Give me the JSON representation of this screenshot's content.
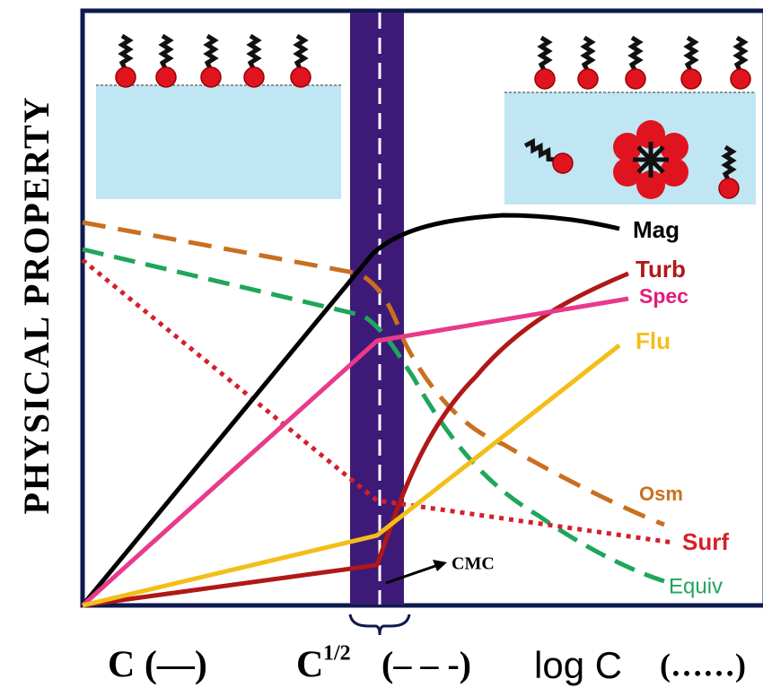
{
  "y_axis_label": "PHYSICAL PROPERTY",
  "curves": [
    "Mag",
    "Turb",
    "Spec",
    "Flu",
    "Osm",
    "Surf",
    "Equiv"
  ],
  "marker": "CMC",
  "x_labels": {
    "linear": "C (—)",
    "sqrt_base": "C",
    "sqrt_exp": "1/2",
    "sqrt_style": "(– – -)",
    "log": "log C",
    "log_style": "(……)"
  }
}
